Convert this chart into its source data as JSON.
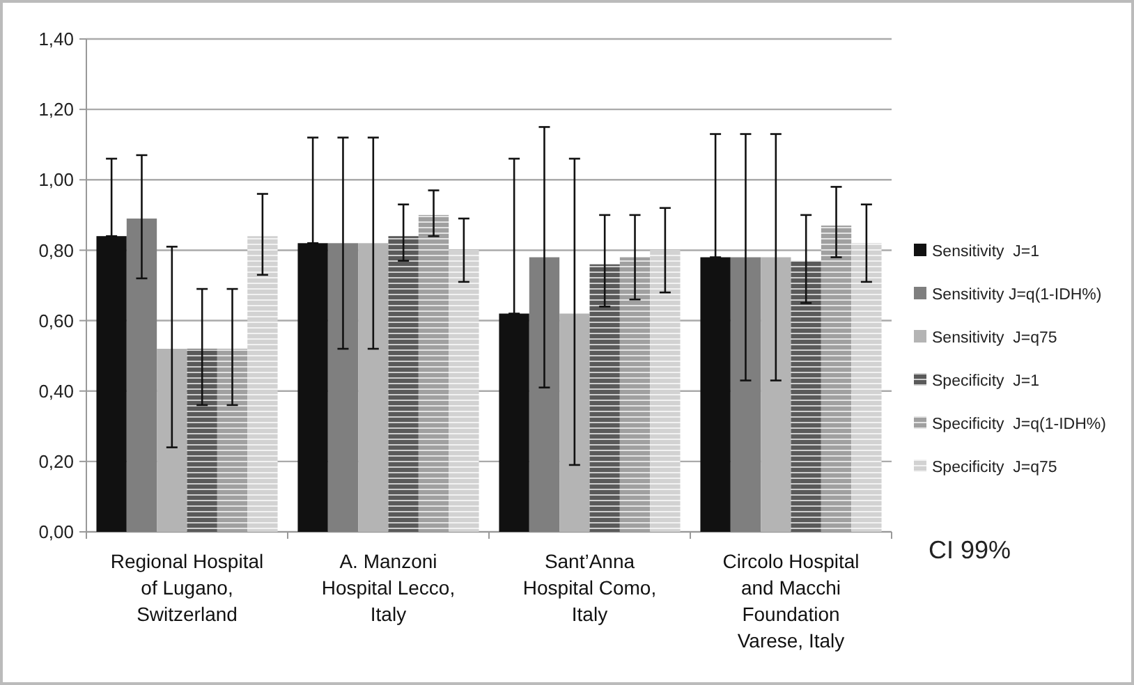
{
  "chart_data": {
    "type": "bar",
    "categories": [
      "Regional Hospital of Lugano, Switzerland",
      "A. Manzoni Hospital Lecco, Italy",
      "Sant’Anna Hospital Como, Italy",
      "Circolo Hospital and Macchi Foundation Varese, Italy"
    ],
    "series": [
      {
        "name": "Sensitivity  J=1",
        "color": "#111111",
        "values": [
          0.84,
          0.82,
          0.62,
          0.78
        ],
        "errors": [
          [
            0.84,
            1.06
          ],
          [
            0.82,
            1.12
          ],
          [
            0.62,
            1.06
          ],
          [
            0.78,
            1.13
          ]
        ]
      },
      {
        "name": "Sensitivity J=q(1-IDH%)",
        "color": "#7f7f7f",
        "values": [
          0.89,
          0.82,
          0.78,
          0.78
        ],
        "errors": [
          [
            0.72,
            1.07
          ],
          [
            0.52,
            1.12
          ],
          [
            0.41,
            1.15
          ],
          [
            0.43,
            1.13
          ]
        ]
      },
      {
        "name": "Sensitivity  J=q75",
        "color": "#b4b4b4",
        "values": [
          0.52,
          0.82,
          0.62,
          0.78
        ],
        "errors": [
          [
            0.24,
            0.81
          ],
          [
            0.52,
            1.12
          ],
          [
            0.19,
            1.06
          ],
          [
            0.43,
            1.13
          ]
        ]
      },
      {
        "name": "Specificity  J=1",
        "color": "#5a5a5a",
        "values": [
          0.52,
          0.84,
          0.76,
          0.77
        ],
        "errors": [
          [
            0.36,
            0.69
          ],
          [
            0.77,
            0.93
          ],
          [
            0.64,
            0.9
          ],
          [
            0.65,
            0.9
          ]
        ]
      },
      {
        "name": "Specificity  J=q(1-IDH%)",
        "color": "#a0a0a0",
        "values": [
          0.52,
          0.9,
          0.78,
          0.87
        ],
        "errors": [
          [
            0.36,
            0.69
          ],
          [
            0.84,
            0.97
          ],
          [
            0.66,
            0.9
          ],
          [
            0.78,
            0.98
          ]
        ]
      },
      {
        "name": "Specificity  J=q75",
        "color": "#d2d2d2",
        "values": [
          0.84,
          0.8,
          0.8,
          0.82
        ],
        "errors": [
          [
            0.73,
            0.96
          ],
          [
            0.71,
            0.89
          ],
          [
            0.68,
            0.92
          ],
          [
            0.71,
            0.93
          ]
        ]
      }
    ],
    "ylim": [
      0,
      1.4
    ],
    "yticks": [
      {
        "value": 0,
        "label": "0,00"
      },
      {
        "value": 0.2,
        "label": "0,20"
      },
      {
        "value": 0.4,
        "label": "0,40"
      },
      {
        "value": 0.6,
        "label": "0,60"
      },
      {
        "value": 0.8,
        "label": "0,80"
      },
      {
        "value": 1,
        "label": "1,00"
      },
      {
        "value": 1.2,
        "label": "1,20"
      },
      {
        "value": 1.4,
        "label": "1,40"
      }
    ],
    "grid": "y",
    "legend": "right",
    "annotations": [
      "CI 99%"
    ]
  }
}
